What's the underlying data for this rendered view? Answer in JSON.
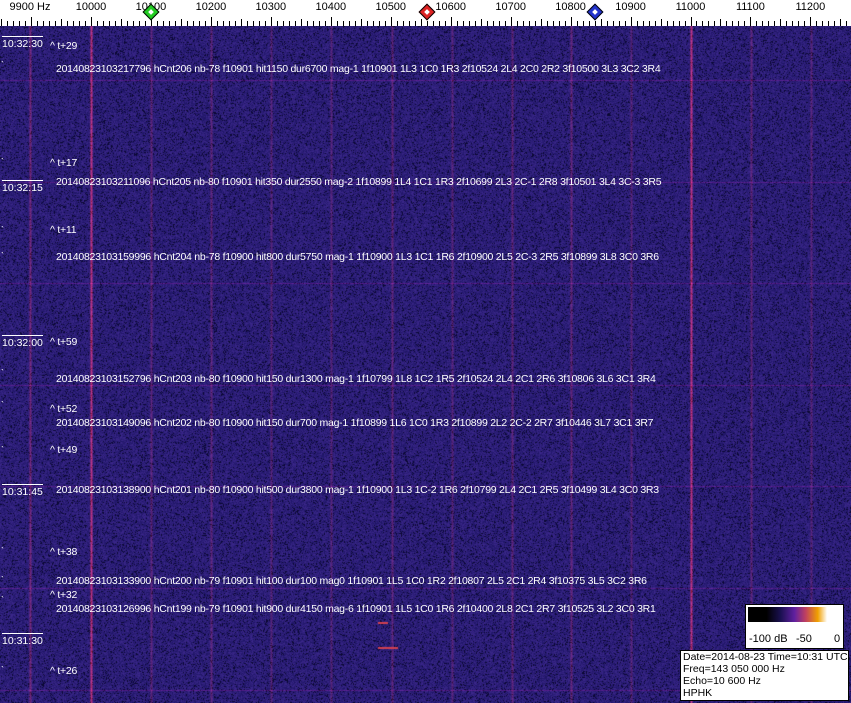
{
  "axis": {
    "unit_label": "9900 Hz",
    "ticks": [
      "10000",
      "10100",
      "10200",
      "10300",
      "10400",
      "10500",
      "10600",
      "10700",
      "10800",
      "10900",
      "11000",
      "11100",
      "11200"
    ],
    "markers": [
      {
        "name": "green-marker",
        "freq_hz": 10100,
        "color": "#22cc22"
      },
      {
        "name": "red-marker",
        "freq_hz": 10560,
        "color": "#dd2222"
      },
      {
        "name": "blue-marker",
        "freq_hz": 10840,
        "color": "#2233cc"
      }
    ]
  },
  "colors": {
    "background": "#1b1569",
    "carrier_line": "#c0406a"
  },
  "time_labels": [
    "10:32:30",
    "10:32:15",
    "10:32:00",
    "10:31:45",
    "10:31:30"
  ],
  "offset_labels": [
    "^ t+29",
    "^ t+17",
    "^ t+11",
    "^ t+59",
    "^ t+52",
    "^ t+49",
    "^ t+38",
    "^ t+32",
    "^ t+26"
  ],
  "detections": [
    "20140823103217796 hCnt206 nb-78 f10901 hit1150 dur6700 mag-1 1f10901 1L3 1C0 1R3 2f10524 2L4 2C0 2R2 3f10500 3L3 3C2 3R4",
    "20140823103211096 hCnt205 nb-80 f10901 hit350 dur2550 mag-2 1f10899 1L4 1C1 1R3 2f10699 2L3 2C-1 2R8 3f10501 3L4 3C-3 3R5",
    "20140823103159996 hCnt204 nb-78 f10900 hit800 dur5750 mag-1 1f10900 1L3 1C1 1R6 2f10900 2L5 2C-3 2R5 3f10899 3L8 3C0 3R6",
    "20140823103152796 hCnt203 nb-80 f10900 hit150 dur1300 mag-1 1f10799 1L8 1C2 1R5 2f10524 2L4 2C1 2R6 3f10806 3L6 3C1 3R4",
    "20140823103149096 hCnt202 nb-80 f10900 hit150 dur700 mag-1 1f10899 1L6 1C0 1R3 2f10899 2L2 2C-2 2R7 3f10446 3L7 3C1 3R7",
    "20140823103138900 hCnt201 nb-80 f10900 hit500 dur3800 mag-1 1f10900 1L3 1C-2 1R6 2f10799 2L4 2C1 2R5 3f10499 3L4 3C0 3R3",
    "20140823103133900 hCnt200 nb-79 f10901 hit100 dur100 mag0 1f10901 1L5 1C0 1R2 2f10807 2L5 2C1 2R4 3f10375 3L5 3C2 3R6",
    "20140823103126996 hCnt199 nb-79 f10901 hit900 dur4150 mag-6 1f10901 1L5 1C0 1R6 2f10400 2L8 2C1 2R7 3f10525 3L2 3C0 3R1"
  ],
  "scale": {
    "labels": [
      "-100 dB",
      "-50",
      "0"
    ]
  },
  "info": {
    "date_time": "Date=2014-08-23 Time=10:31 UTC",
    "freq": "Freq=143 050 000 Hz",
    "echo": "Echo=10 600 Hz",
    "station": "HPHK"
  }
}
